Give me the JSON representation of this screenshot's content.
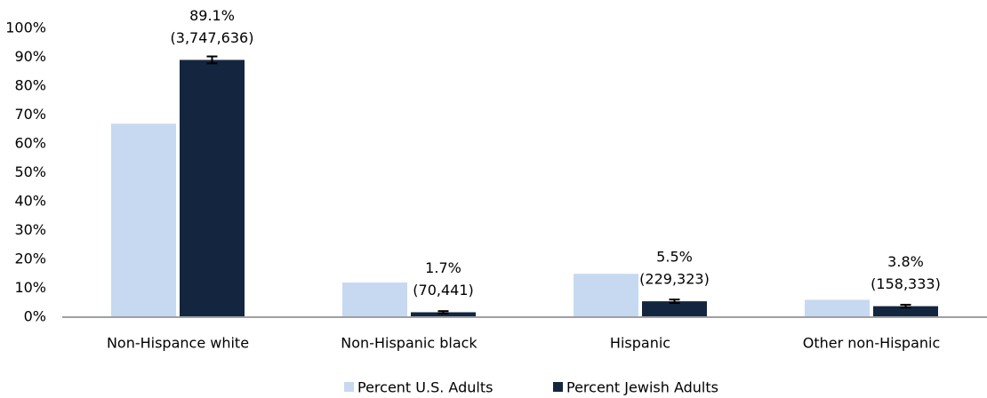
{
  "chart_data": {
    "type": "bar",
    "categories": [
      "Non-Hispance white",
      "Non-Hispanic black",
      "Hispanic",
      "Other non-Hispanic"
    ],
    "series": [
      {
        "name": "Percent U.S. Adults",
        "color": "#c6d9f1",
        "values": [
          67,
          12,
          15,
          6
        ]
      },
      {
        "name": "Percent Jewish Adults",
        "color": "#14263f",
        "values": [
          89.1,
          1.7,
          5.5,
          3.8
        ],
        "value_labels": [
          "89.1%",
          "1.7%",
          "5.5%",
          "3.8%"
        ],
        "count_labels": [
          "(3,747,636)",
          "(70,441)",
          "(229,323)",
          "(158,333)"
        ],
        "errors": [
          1.2,
          0.4,
          0.6,
          0.5
        ],
        "error_color": "#000000"
      }
    ],
    "ylim": [
      0,
      100
    ],
    "yticks": [
      {
        "value": 0,
        "label": "0%"
      },
      {
        "value": 10,
        "label": "10%"
      },
      {
        "value": 20,
        "label": "20%"
      },
      {
        "value": 30,
        "label": "30%"
      },
      {
        "value": 40,
        "label": "40%"
      },
      {
        "value": 50,
        "label": "50%"
      },
      {
        "value": 60,
        "label": "60%"
      },
      {
        "value": 70,
        "label": "70%"
      },
      {
        "value": 80,
        "label": "80%"
      },
      {
        "value": 90,
        "label": "90%"
      },
      {
        "value": 100,
        "label": "100%"
      }
    ],
    "grid": false,
    "legend": "bottom"
  }
}
